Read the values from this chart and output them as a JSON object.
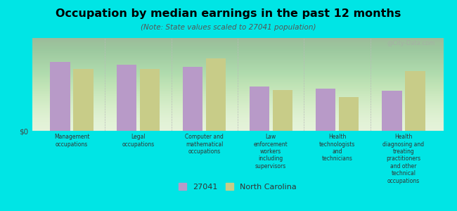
{
  "title": "Occupation by median earnings in the past 12 months",
  "subtitle": "(Note: State values scaled to 27041 population)",
  "background_color": "#00e5e5",
  "plot_bg_top": "#e8f5e0",
  "plot_bg_bottom": "#f0fff0",
  "bar_color_27041": "#b89ac8",
  "bar_color_nc": "#c8cc88",
  "categories": [
    "Management\noccupations",
    "Legal\noccupations",
    "Computer and\nmathematical\noccupations",
    "Law\nenforcement\nworkers\nincluding\nsupervisors",
    "Health\ntechnologists\nand\ntechnicians",
    "Health\ndiagnosing and\ntreating\npractitioners\nand other\ntechnical\noccupations"
  ],
  "values_27041": [
    0.78,
    0.75,
    0.72,
    0.5,
    0.48,
    0.45
  ],
  "values_nc": [
    0.7,
    0.7,
    0.82,
    0.46,
    0.38,
    0.68
  ],
  "ylabel": "$0",
  "legend_27041": "27041",
  "legend_nc": "North Carolina",
  "watermark": "@City-Data.com"
}
